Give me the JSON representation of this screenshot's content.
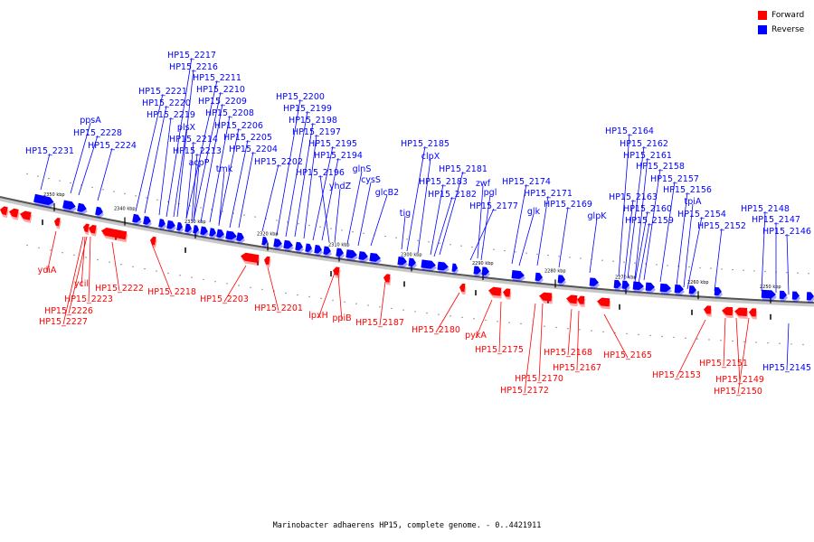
{
  "legend": {
    "forward_label": "Forward",
    "reverse_label": "Reverse",
    "forward_color": "#ff0000",
    "reverse_color": "#0000ff"
  },
  "caption": "Marinobacter adhaerens HP15, complete genome. - 0..4421911",
  "kbp_ticks": [
    "2350 kbp",
    "2340 kbp",
    "2330 kbp",
    "2320 kbp",
    "2310 kbp",
    "2300 kbp",
    "2290 kbp",
    "2280 kbp",
    "2270 kbp",
    "2260 kbp",
    "2250 kbp"
  ],
  "reverse_labels": [
    "HP15_2231",
    "ppsA",
    "HP15_2228",
    "HP15_2224",
    "HP15_2221",
    "HP15_2220",
    "HP15_2219",
    "HP15_2217",
    "HP15_2216",
    "HP15_2211",
    "HP15_2210",
    "HP15_2209",
    "HP15_2208",
    "HP15_2206",
    "plsX",
    "HP15_2214",
    "HP15_2213",
    "acpP",
    "tmk",
    "HP15_2205",
    "HP15_2204",
    "HP15_2202",
    "HP15_2200",
    "HP15_2199",
    "HP15_2198",
    "HP15_2197",
    "HP15_2195",
    "HP15_2194",
    "HP15_2196",
    "yhdZ",
    "glnS",
    "cysS",
    "glcB2",
    "tig",
    "HP15_2185",
    "clpX",
    "HP15_2181",
    "HP15_2183",
    "HP15_2182",
    "zwf",
    "pgl",
    "HP15_2177",
    "HP15_2174",
    "HP15_2171",
    "glk",
    "HP15_2169",
    "glpK",
    "HP15_2164",
    "HP15_2162",
    "HP15_2161",
    "HP15_2158",
    "HP15_2157",
    "HP15_2163",
    "HP15_2160",
    "HP15_2159",
    "HP15_2156",
    "tpiA",
    "HP15_2154",
    "HP15_2152",
    "HP15_2148",
    "HP15_2147",
    "HP15_2146",
    "HP15_2145"
  ],
  "forward_labels": [
    "ydiA",
    "ycil",
    "HP15_2223",
    "HP15_2226",
    "HP15_2227",
    "HP15_2222",
    "HP15_2218",
    "HP15_2203",
    "HP15_2201",
    "lpxH",
    "ppiB",
    "HP15_2187",
    "HP15_2180",
    "pykA",
    "HP15_2175",
    "HP15_2170",
    "HP15_2172",
    "HP15_2168",
    "HP15_2167",
    "HP15_2165",
    "HP15_2153",
    "HP15_2151",
    "HP15_2149",
    "HP15_2150"
  ]
}
